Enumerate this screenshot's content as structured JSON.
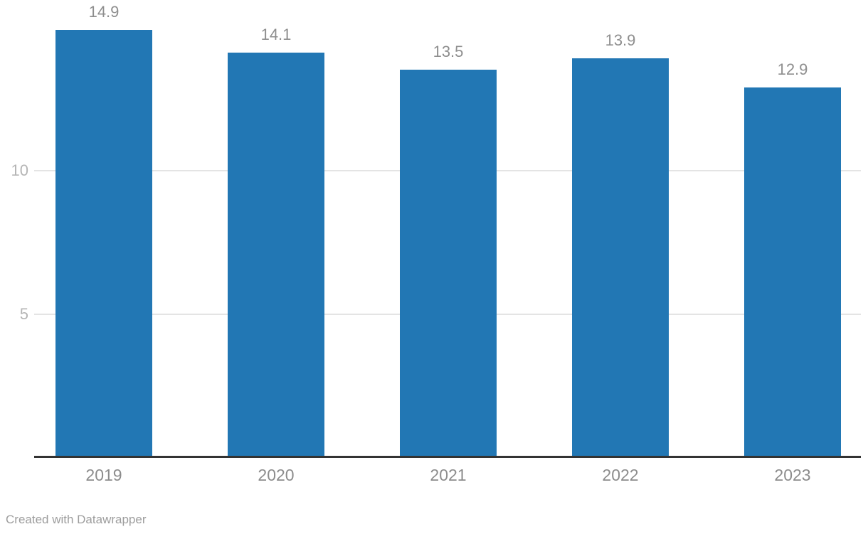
{
  "chart_data": {
    "type": "bar",
    "categories": [
      "2019",
      "2020",
      "2021",
      "2022",
      "2023"
    ],
    "values": [
      14.9,
      14.1,
      13.5,
      13.9,
      12.9
    ],
    "value_labels": [
      "14.9",
      "14.1",
      "13.5",
      "13.9",
      "12.9"
    ],
    "y_ticks": [
      5,
      10
    ],
    "ylim": [
      0,
      15.9
    ],
    "grid": "horizontal",
    "legend": "none",
    "title": "",
    "xlabel": "",
    "ylabel": ""
  },
  "footer": {
    "credit": "Created with Datawrapper"
  },
  "colors": {
    "bar": "#2277b4",
    "axis_line": "#333333",
    "gridline": "#e4e4e4",
    "y_tick_label": "#b5b5b5",
    "x_category_label": "#8c8c8c",
    "value_label": "#8e8e8e",
    "footer_text": "#9d9d9d",
    "background": "#ffffff"
  }
}
